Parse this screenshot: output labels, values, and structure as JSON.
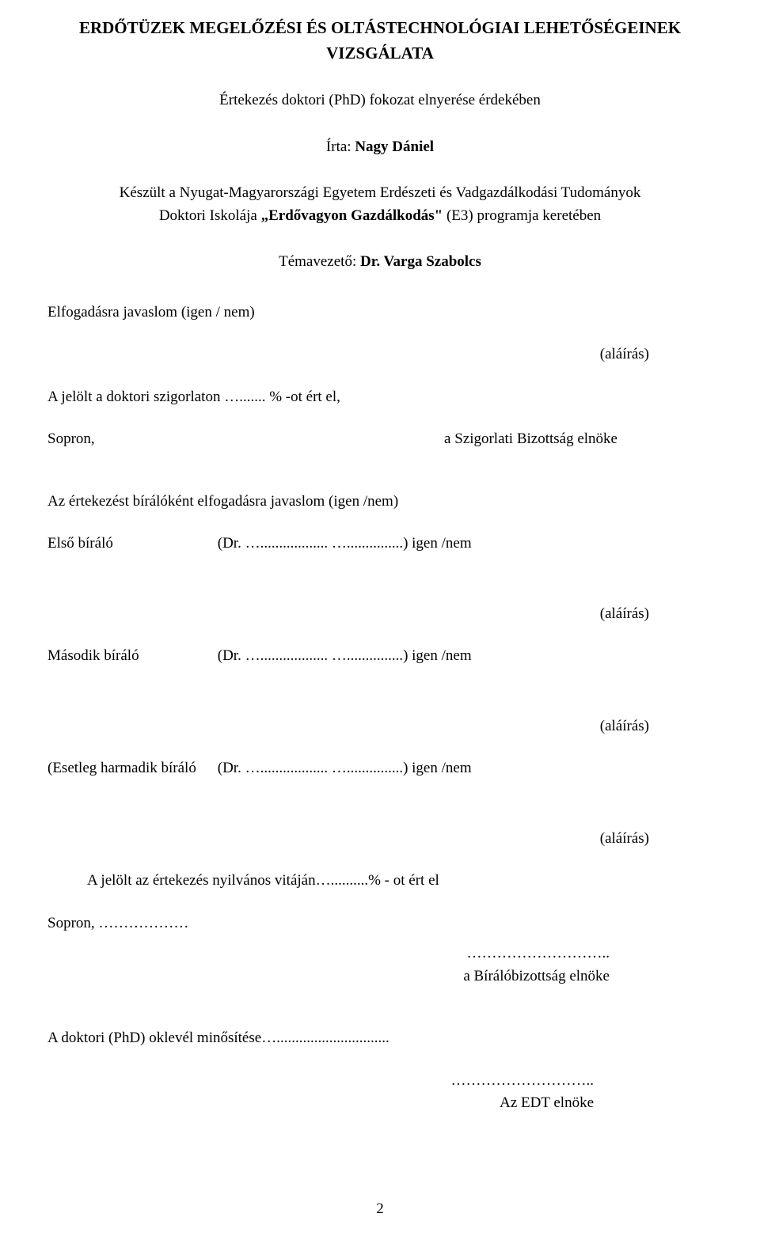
{
  "title": "ERDŐTÜZEK MEGELŐZÉSI ÉS OLTÁSTECHNOLÓGIAI LEHETŐSÉGEINEK VIZSGÁLATA",
  "subtitle": "Értekezés doktori (PhD) fokozat elnyerése érdekében",
  "author_prefix": "Írta: ",
  "author_name": "Nagy Dániel",
  "institution_line1": "Készült a Nyugat-Magyarországi Egyetem Erdészeti és Vadgazdálkodási Tudományok",
  "institution_line2_prefix": "Doktori Iskolája ",
  "institution_bold": "„Erdővagyon Gazdálkodás\"",
  "institution_line2_suffix": " (E3) programja keretében",
  "supervisor_prefix": "Témavezető: ",
  "supervisor_name": "Dr. Varga Szabolcs",
  "acceptance_line": "Elfogadásra javaslom (igen / nem)",
  "signature": "(aláírás)",
  "candidate_line": "A jelölt a doktori szigorlaton …....... % -ot ért el,",
  "sopron": "Sopron,",
  "committee_chair": "a Szigorlati Bizottság elnöke",
  "thesis_reviewer_line": "Az értekezést bírálóként elfogadásra javaslom (igen /nem)",
  "first_reviewer_label": "Első bíráló",
  "first_reviewer_dr": "(Dr. ….................. …...............) igen /nem",
  "second_reviewer_label": "Második bíráló",
  "second_reviewer_dr": "(Dr. ….................. …...............) igen /nem",
  "third_reviewer_label": "(Esetleg harmadik bíráló",
  "third_reviewer_dr": "(Dr. ….................. …...............) igen /nem",
  "defense_line": "A jelölt az értekezés nyilvános vitáján…..........% - ot ért el",
  "sopron_dots": "Sopron, ………………",
  "dots": "………………………..",
  "review_committee_chair": "a Bírálóbizottság elnöke",
  "diploma_line": "A  doktori (PhD) oklevél minősítése…..............................",
  "edt_chair": "Az EDT elnöke",
  "page_number": "2",
  "colors": {
    "background": "#ffffff",
    "text": "#000000"
  }
}
